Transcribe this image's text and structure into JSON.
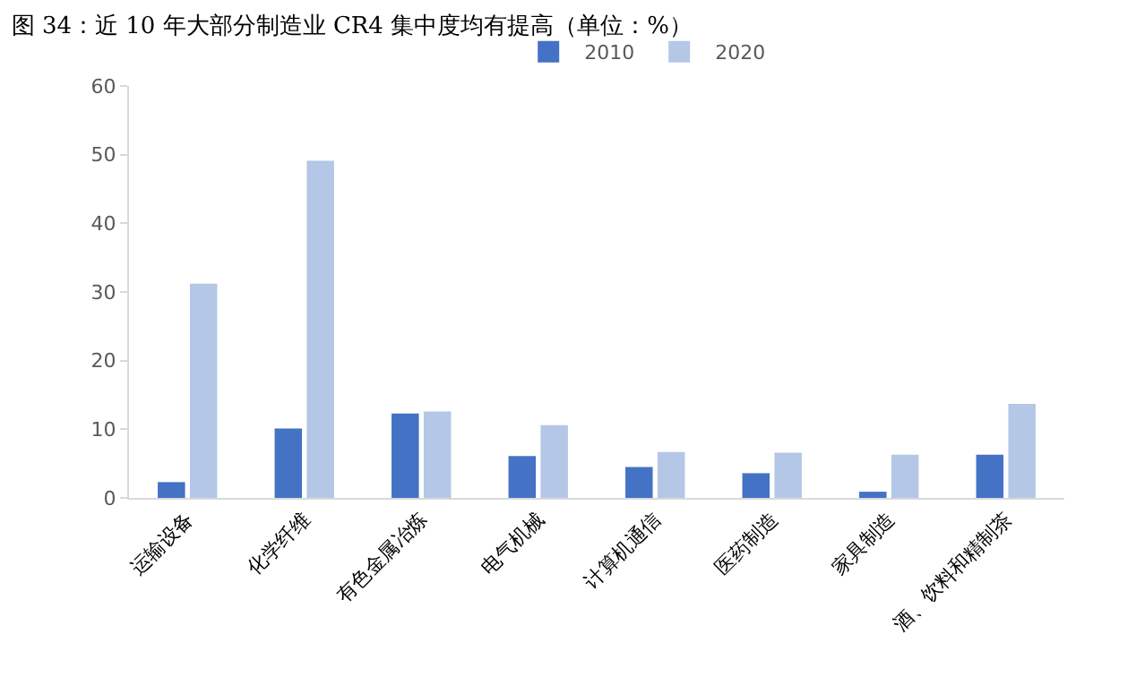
{
  "chart_data": {
    "type": "bar",
    "title": "图 34：近 10 年大部分制造业 CR4 集中度均有提高（单位：%）",
    "categories": [
      "运输设备",
      "化学纤维",
      "有色金属冶炼",
      "电气机械",
      "计算机通信",
      "医药制造",
      "家具制造",
      "酒、饮料和精制茶"
    ],
    "series": [
      {
        "name": "2010",
        "color": "#4472c4",
        "values": [
          2.3,
          10.1,
          12.3,
          6.1,
          4.5,
          3.6,
          0.9,
          6.3
        ]
      },
      {
        "name": "2020",
        "color": "#b4c7e7",
        "values": [
          31.2,
          49.1,
          12.6,
          10.6,
          6.7,
          6.6,
          6.3,
          13.7
        ]
      }
    ],
    "ylim": [
      0,
      60
    ],
    "yticks": [
      0,
      10,
      20,
      30,
      40,
      50,
      60
    ],
    "grid": false,
    "legend": "top"
  }
}
